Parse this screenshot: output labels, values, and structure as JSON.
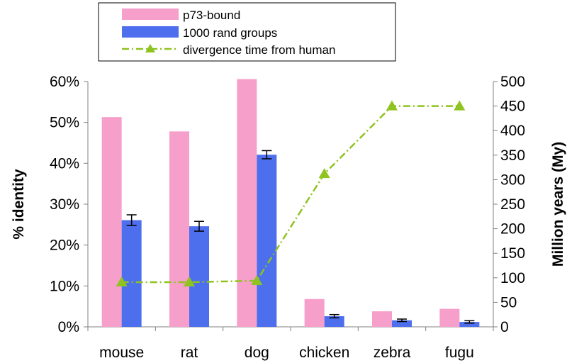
{
  "chart_data": {
    "type": "bar",
    "categories": [
      "mouse",
      "rat",
      "dog",
      "chicken",
      "zebra",
      "fugu"
    ],
    "series": [
      {
        "name": "p73-bound",
        "kind": "bar",
        "axis": "left",
        "color": "#f79fcb",
        "values": [
          51.3,
          47.8,
          60.6,
          6.8,
          3.8,
          4.4
        ]
      },
      {
        "name": "1000 rand groups",
        "kind": "bar",
        "axis": "left",
        "color": "#4d6fee",
        "values": [
          26.1,
          24.6,
          42.1,
          2.6,
          1.6,
          1.2
        ],
        "error": [
          1.3,
          1.2,
          1.0,
          0.4,
          0.3,
          0.3
        ]
      },
      {
        "name": "divergence time from human",
        "kind": "line",
        "axis": "right",
        "color": "#8fc31f",
        "line_style": "dash-dot",
        "marker": "triangle",
        "values": [
          91,
          91,
          94,
          312,
          450,
          450
        ]
      }
    ],
    "ylabel": "% identity",
    "y2label": "Million years (My)",
    "ylim": [
      0,
      60
    ],
    "y2lim": [
      0,
      500
    ],
    "yticks": [
      "0%",
      "10%",
      "20%",
      "30%",
      "40%",
      "50%",
      "60%"
    ],
    "y2ticks": [
      "0",
      "50",
      "100",
      "150",
      "200",
      "250",
      "300",
      "350",
      "400",
      "450",
      "500"
    ],
    "grid": false,
    "legend_position": "top"
  }
}
